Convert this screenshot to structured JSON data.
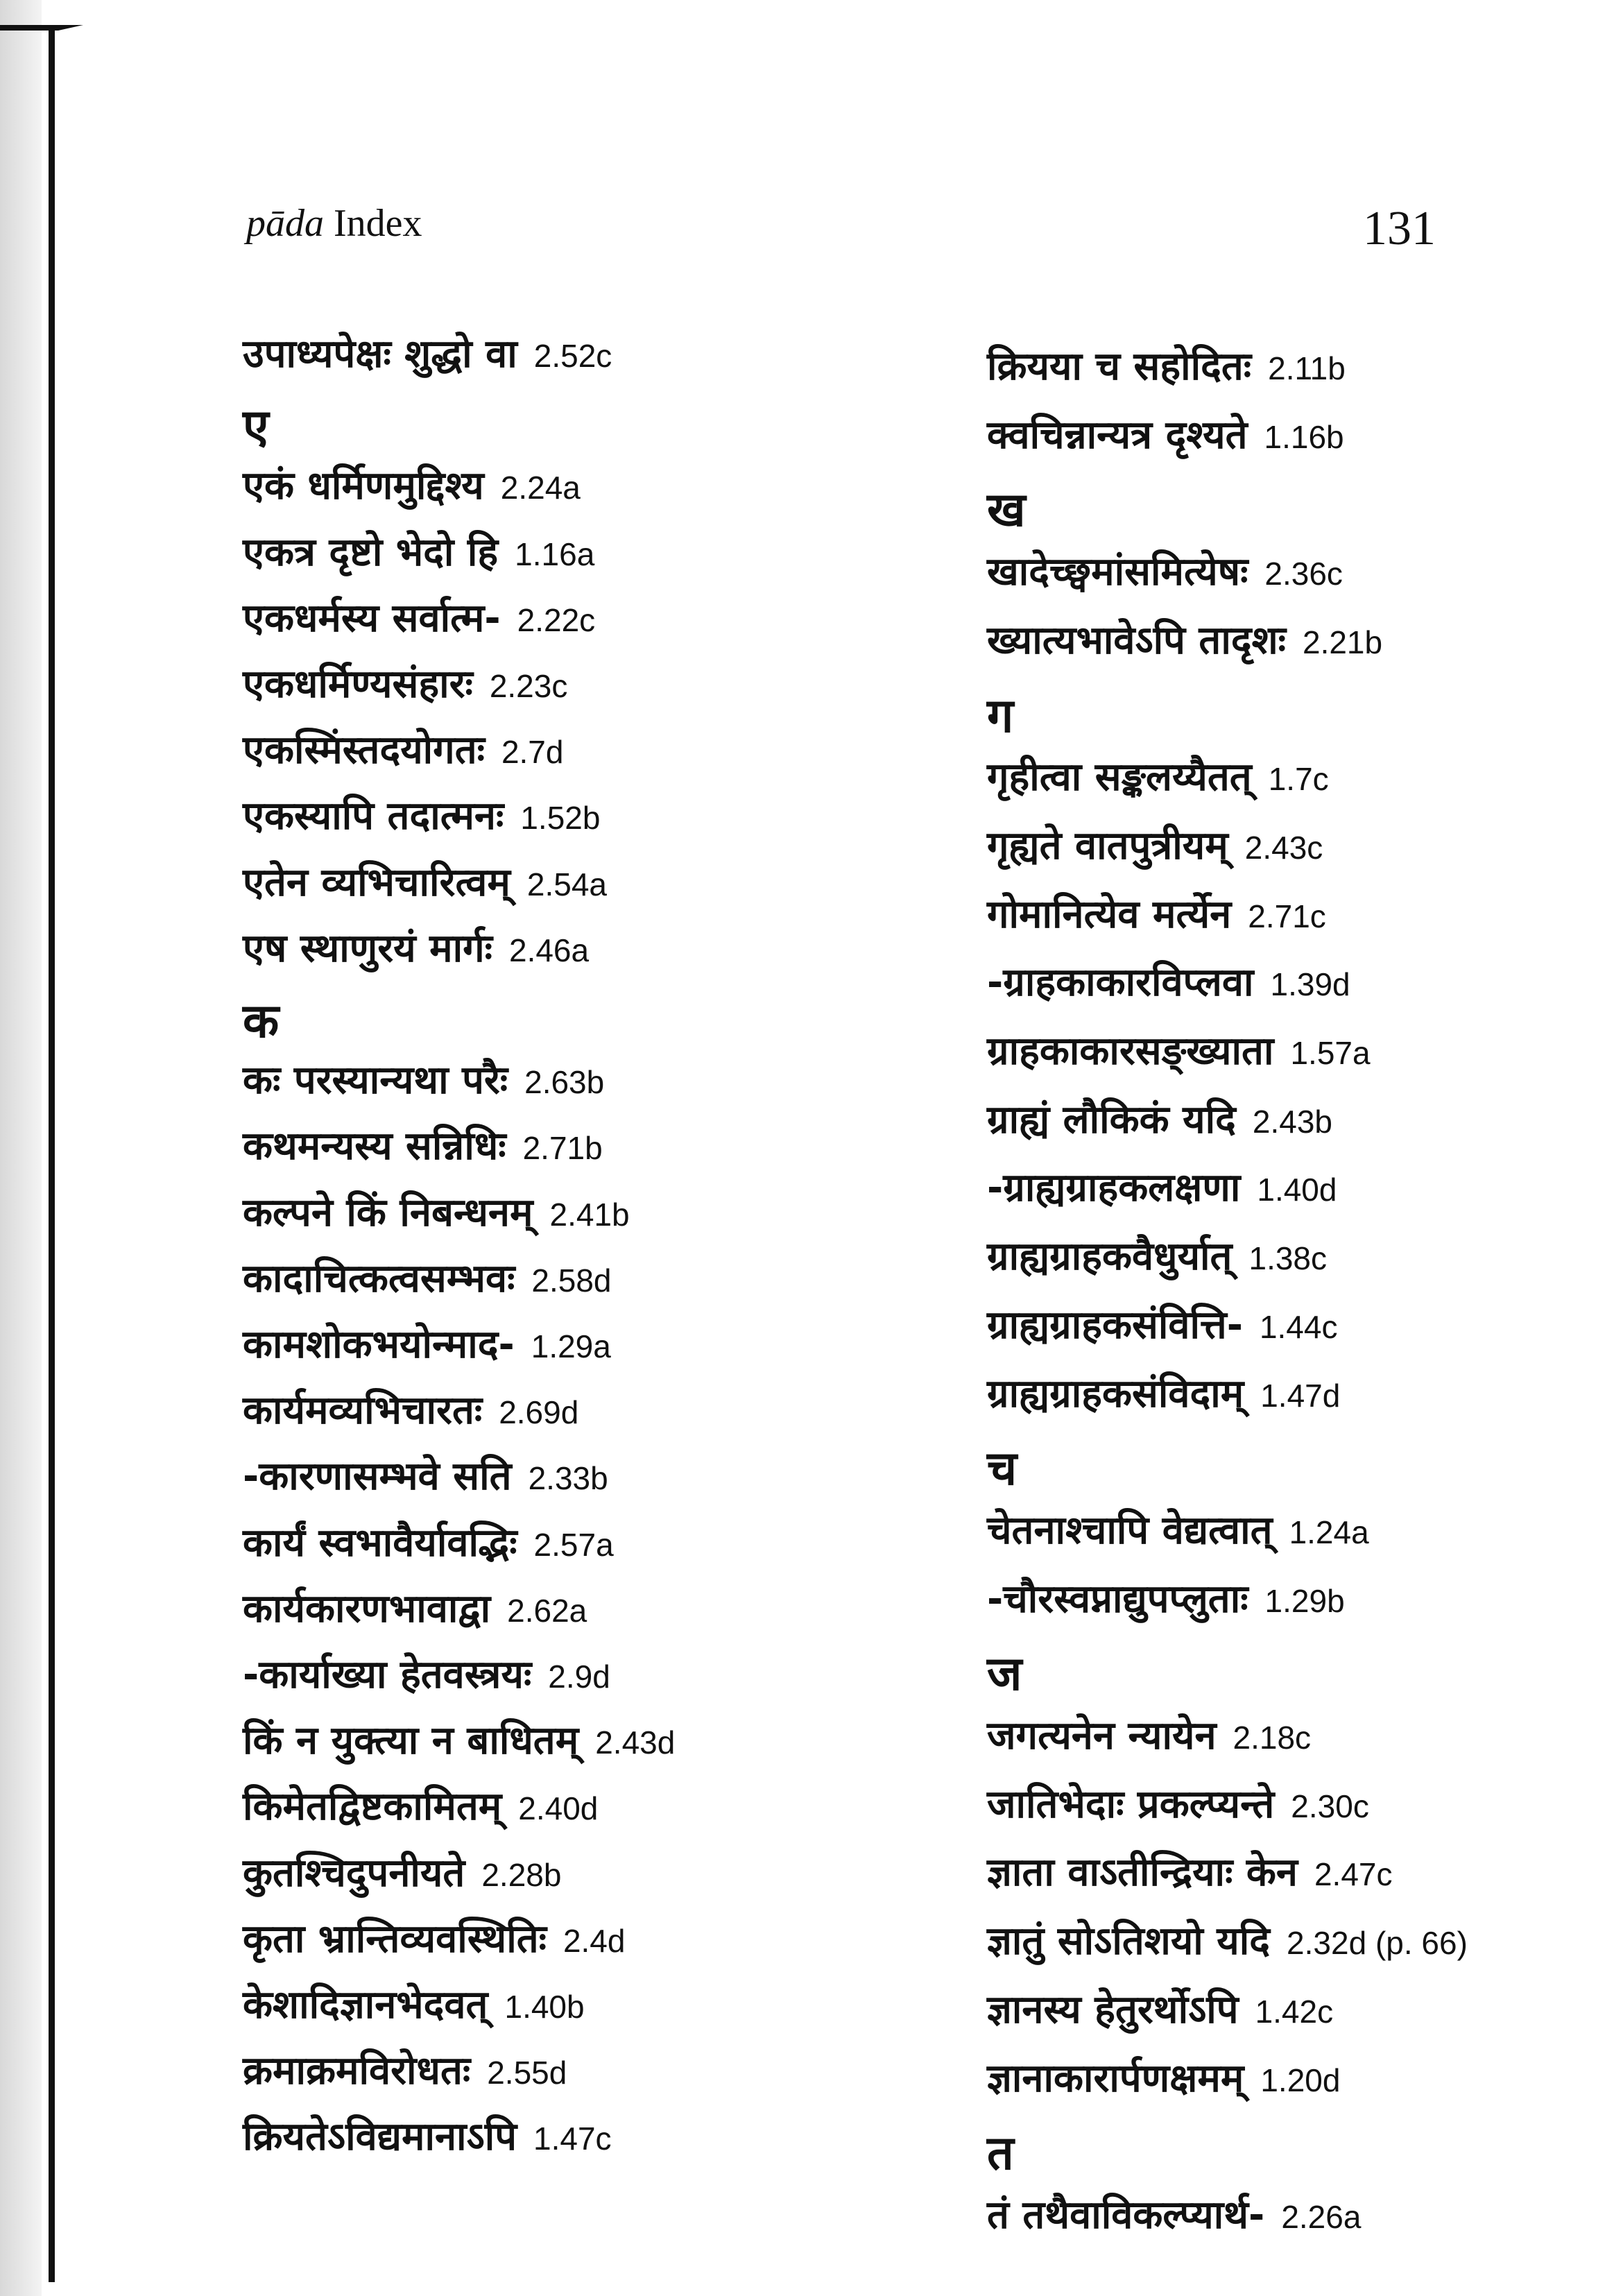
{
  "header": {
    "title_italic": "pāda",
    "title_rest": "Index",
    "page_number": "131"
  },
  "left_column": [
    {
      "term": "उपाध्यपेक्षः शुद्धो वा",
      "ref": "2.52c"
    },
    {
      "letter": "ए"
    },
    {
      "term": "एकं धर्मिणमुद्दिश्य",
      "ref": "2.24a"
    },
    {
      "term": "एकत्र दृष्टो भेदो हि",
      "ref": "1.16a"
    },
    {
      "term": "एकधर्मस्य सर्वात्म-",
      "ref": "2.22c"
    },
    {
      "term": "एकधर्मिण्यसंहारः",
      "ref": "2.23c"
    },
    {
      "term": "एकस्मिंस्तदयोगतः",
      "ref": "2.7d"
    },
    {
      "term": "एकस्यापि तदात्मनः",
      "ref": "1.52b"
    },
    {
      "term": "एतेन व्यभिचारित्वम्",
      "ref": "2.54a"
    },
    {
      "term": "एष स्थाणुरयं मार्गः",
      "ref": "2.46a"
    },
    {
      "letter": "क"
    },
    {
      "term": "कः परस्यान्यथा परैः",
      "ref": "2.63b"
    },
    {
      "term": "कथमन्यस्य सन्निधिः",
      "ref": "2.71b"
    },
    {
      "term": "कल्पने किं निबन्धनम्",
      "ref": "2.41b"
    },
    {
      "term": "कादाचित्कत्वसम्भवः",
      "ref": "2.58d"
    },
    {
      "term": "कामशोकभयोन्माद-",
      "ref": "1.29a"
    },
    {
      "term": "कार्यमव्यभिचारतः",
      "ref": "2.69d"
    },
    {
      "term": "-कारणासम्भवे सति",
      "ref": "2.33b"
    },
    {
      "term": "कार्यं स्वभावैर्यावद्भिः",
      "ref": "2.57a"
    },
    {
      "term": "कार्यकारणभावाद्वा",
      "ref": "2.62a"
    },
    {
      "term": "-कार्याख्या हेतवस्त्रयः",
      "ref": "2.9d"
    },
    {
      "term": "किं न युक्त्या न बाधितम्",
      "ref": "2.43d"
    },
    {
      "term": "किमेतद्विष्टकामितम्",
      "ref": "2.40d"
    },
    {
      "term": "कुतश्चिदुपनीयते",
      "ref": "2.28b"
    },
    {
      "term": "कृता भ्रान्तिव्यवस्थितिः",
      "ref": "2.4d"
    },
    {
      "term": "केशादिज्ञानभेदवत्",
      "ref": "1.40b"
    },
    {
      "term": "क्रमाक्रमविरोधतः",
      "ref": "2.55d"
    },
    {
      "term": "क्रियतेऽविद्यमानाऽपि",
      "ref": "1.47c"
    }
  ],
  "right_column": [
    {
      "term": "क्रियया च सहोदितः",
      "ref": "2.11b"
    },
    {
      "term": "क्वचिन्नान्यत्र दृश्यते",
      "ref": "1.16b"
    },
    {
      "letter": "ख"
    },
    {
      "term": "खादेच्छ्वमांसमित्येषः",
      "ref": "2.36c"
    },
    {
      "term": "ख्यात्यभावेऽपि तादृशः",
      "ref": "2.21b"
    },
    {
      "letter": "ग"
    },
    {
      "term": "गृहीत्वा सङ्कलय्यैतत्",
      "ref": "1.7c"
    },
    {
      "term": "गृह्यते वातपुत्रीयम्",
      "ref": "2.43c"
    },
    {
      "term": "गोमानित्येव मर्त्येन",
      "ref": "2.71c"
    },
    {
      "term": "-ग्राहकाकारविप्लवा",
      "ref": "1.39d"
    },
    {
      "term": "ग्राहकाकारसङ्ख्याता",
      "ref": "1.57a"
    },
    {
      "term": "ग्राह्यं लौकिकं यदि",
      "ref": "2.43b"
    },
    {
      "term": "-ग्राह्यग्राहकलक्षणा",
      "ref": "1.40d"
    },
    {
      "term": "ग्राह्यग्राहकवैधुर्यात्",
      "ref": "1.38c"
    },
    {
      "term": "ग्राह्यग्राहकसंवित्ति-",
      "ref": "1.44c"
    },
    {
      "term": "ग्राह्यग्राहकसंविदाम्",
      "ref": "1.47d"
    },
    {
      "letter": "च"
    },
    {
      "term": "चेतनाश्चापि वेद्यत्वात्",
      "ref": "1.24a"
    },
    {
      "term": "-चौरस्वप्नाद्युपप्लुताः",
      "ref": "1.29b"
    },
    {
      "letter": "ज"
    },
    {
      "term": "जगत्यनेन न्यायेन",
      "ref": "2.18c"
    },
    {
      "term": "जातिभेदाः प्रकल्प्यन्ते",
      "ref": "2.30c"
    },
    {
      "term": "ज्ञाता वाऽतीन्द्रियाः केन",
      "ref": "2.47c"
    },
    {
      "term": "ज्ञातुं सोऽतिशयो यदि",
      "ref": "2.32d (p. 66)"
    },
    {
      "term": "ज्ञानस्य हेतुरर्थोऽपि",
      "ref": "1.42c"
    },
    {
      "term": "ज्ञानाकारार्पणक्षमम्",
      "ref": "1.20d"
    },
    {
      "letter": "त"
    },
    {
      "term": "तं तथैवाविकल्प्यार्थ-",
      "ref": "2.26a"
    }
  ]
}
